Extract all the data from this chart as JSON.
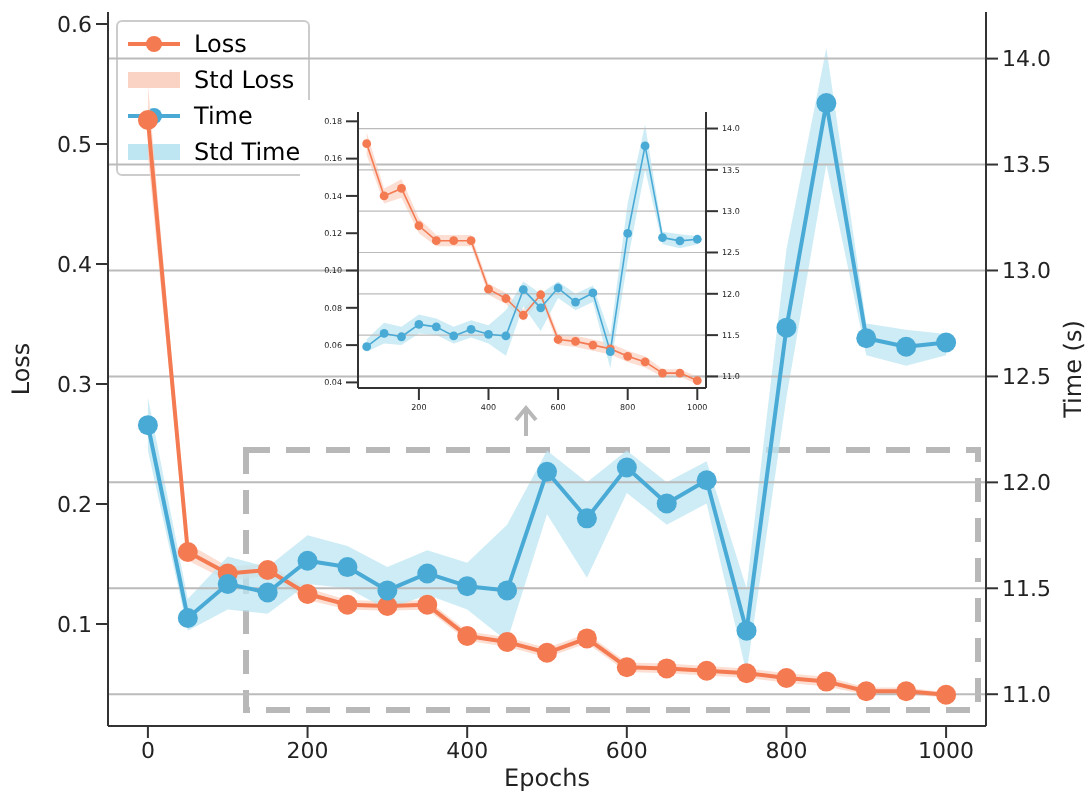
{
  "chart_data": [
    {
      "type": "line",
      "xlabel": "Epochs",
      "ylabel": "Loss",
      "y2label": "Time (s)",
      "x": [
        0,
        50,
        100,
        150,
        200,
        250,
        300,
        350,
        400,
        450,
        500,
        550,
        600,
        650,
        700,
        750,
        800,
        850,
        900,
        950,
        1000
      ],
      "series": [
        {
          "name": "Loss",
          "color": "#f47a52",
          "values": [
            0.52,
            0.16,
            0.142,
            0.145,
            0.125,
            0.116,
            0.115,
            0.116,
            0.09,
            0.085,
            0.076,
            0.088,
            0.064,
            0.063,
            0.061,
            0.059,
            0.055,
            0.052,
            0.044,
            0.044,
            0.041
          ]
        },
        {
          "name": "Std Loss",
          "type": "area",
          "color": "#fbd3c4",
          "values": [
            null,
            null,
            null,
            null,
            null,
            null,
            null,
            null,
            null,
            null,
            null,
            null,
            null,
            null,
            null,
            null,
            null,
            null,
            null,
            null,
            null
          ],
          "lower": [
            0.49,
            0.153,
            0.136,
            0.14,
            0.12,
            0.112,
            0.111,
            0.112,
            0.086,
            0.081,
            0.072,
            0.084,
            0.06,
            0.059,
            0.057,
            0.055,
            0.051,
            0.048,
            0.041,
            0.041,
            0.039
          ],
          "upper": [
            0.55,
            0.167,
            0.148,
            0.15,
            0.13,
            0.12,
            0.119,
            0.12,
            0.094,
            0.089,
            0.08,
            0.092,
            0.068,
            0.067,
            0.065,
            0.063,
            0.059,
            0.056,
            0.047,
            0.047,
            0.043
          ]
        },
        {
          "name": "Time",
          "color": "#4aaad6",
          "axis": "y2",
          "values": [
            12.27,
            11.36,
            11.52,
            11.48,
            11.63,
            11.6,
            11.49,
            11.57,
            11.51,
            11.49,
            12.05,
            11.83,
            12.07,
            11.9,
            12.01,
            11.3,
            12.73,
            13.79,
            12.68,
            12.64,
            12.66
          ]
        },
        {
          "name": "Std Time",
          "type": "area",
          "color": "#bde5f2",
          "axis": "y2",
          "values": [
            null,
            null,
            null,
            null,
            null,
            null,
            null,
            null,
            null,
            null,
            null,
            null,
            null,
            null,
            null,
            null,
            null,
            null,
            null,
            null,
            null
          ],
          "lower": [
            12.15,
            11.3,
            11.4,
            11.38,
            11.52,
            11.5,
            11.4,
            11.47,
            11.4,
            11.25,
            11.85,
            11.55,
            11.95,
            11.8,
            11.9,
            11.1,
            12.4,
            13.5,
            12.6,
            12.55,
            12.6
          ],
          "upper": [
            12.4,
            11.45,
            11.65,
            11.6,
            11.75,
            11.7,
            11.6,
            11.68,
            11.62,
            11.8,
            12.15,
            12.0,
            12.15,
            12.0,
            12.1,
            11.5,
            13.1,
            14.05,
            12.75,
            12.72,
            12.7
          ]
        }
      ],
      "xlim": [
        -50,
        1050
      ],
      "xticks": [
        0,
        200,
        400,
        600,
        800,
        1000
      ],
      "ylim": [
        0.015,
        0.61
      ],
      "yticks": [
        0.1,
        0.2,
        0.3,
        0.4,
        0.5,
        0.6
      ],
      "y2lim": [
        10.85,
        14.22
      ],
      "y2ticks": [
        {
          "value": 11,
          "label": "11.0"
        },
        11.5,
        {
          "value": 12,
          "label": "12.0"
        },
        12.5,
        {
          "value": 13,
          "label": "13.0"
        },
        13.5,
        {
          "value": 14,
          "label": "14.0"
        }
      ],
      "grid": "y2",
      "legend": "top left",
      "marker": "circle"
    },
    {
      "type": "line",
      "x": [
        50,
        100,
        150,
        200,
        250,
        300,
        350,
        400,
        450,
        500,
        550,
        600,
        650,
        700,
        750,
        800,
        850,
        900,
        950,
        1000
      ],
      "series": [
        {
          "color": "#f47a52",
          "values": [
            0.168,
            0.14,
            0.144,
            0.124,
            0.116,
            0.116,
            0.116,
            0.09,
            0.085,
            0.076,
            0.087,
            0.063,
            0.062,
            0.06,
            0.058,
            0.054,
            0.051,
            0.045,
            0.045,
            0.041
          ]
        },
        {
          "type": "area",
          "color": "#fbd3c4",
          "values": [
            null,
            null,
            null,
            null,
            null,
            null,
            null,
            null,
            null,
            null,
            null,
            null,
            null,
            null,
            null,
            null,
            null,
            null,
            null,
            null
          ],
          "lower": [
            0.162,
            0.136,
            0.139,
            0.12,
            0.113,
            0.113,
            0.113,
            0.087,
            0.082,
            0.073,
            0.084,
            0.06,
            0.059,
            0.057,
            0.055,
            0.051,
            0.048,
            0.043,
            0.043,
            0.039
          ],
          "upper": [
            0.174,
            0.144,
            0.149,
            0.128,
            0.119,
            0.119,
            0.119,
            0.093,
            0.088,
            0.079,
            0.09,
            0.066,
            0.065,
            0.063,
            0.061,
            0.057,
            0.054,
            0.047,
            0.047,
            0.043
          ]
        },
        {
          "color": "#4aaad6",
          "axis": "y2",
          "values": [
            11.36,
            11.52,
            11.48,
            11.63,
            11.6,
            11.49,
            11.57,
            11.51,
            11.49,
            12.05,
            11.83,
            12.07,
            11.9,
            12.01,
            11.3,
            12.73,
            13.79,
            12.68,
            12.64,
            12.66
          ]
        },
        {
          "type": "area",
          "color": "#bde5f2",
          "axis": "y2",
          "values": [
            null,
            null,
            null,
            null,
            null,
            null,
            null,
            null,
            null,
            null,
            null,
            null,
            null,
            null,
            null,
            null,
            null,
            null,
            null,
            null
          ],
          "lower": [
            11.3,
            11.4,
            11.38,
            11.52,
            11.5,
            11.4,
            11.47,
            11.4,
            11.25,
            11.85,
            11.55,
            11.95,
            11.8,
            11.9,
            11.1,
            12.4,
            13.5,
            12.6,
            12.55,
            12.6
          ],
          "upper": [
            11.45,
            11.65,
            11.6,
            11.75,
            11.7,
            11.6,
            11.68,
            11.62,
            11.8,
            12.15,
            12.0,
            12.15,
            12.0,
            12.1,
            11.5,
            13.1,
            14.05,
            12.75,
            12.72,
            12.7
          ]
        }
      ],
      "xlim": [
        25,
        1025
      ],
      "xticks": [
        200,
        400,
        600,
        800,
        1000
      ],
      "ylim": [
        0.037,
        0.185
      ],
      "yticks": [
        0.04,
        0.06,
        0.08,
        {
          "value": 0.1,
          "label": "0.10"
        },
        0.12,
        0.14,
        0.16,
        0.18
      ],
      "y2lim": [
        10.86,
        14.2
      ],
      "y2ticks": [
        {
          "value": 11,
          "label": "11.0"
        },
        11.5,
        {
          "value": 12,
          "label": "12.0"
        },
        12.5,
        {
          "value": 13,
          "label": "13.0"
        },
        13.5,
        {
          "value": 14,
          "label": "14.0"
        }
      ],
      "grid": "y2",
      "marker": "circle"
    }
  ]
}
